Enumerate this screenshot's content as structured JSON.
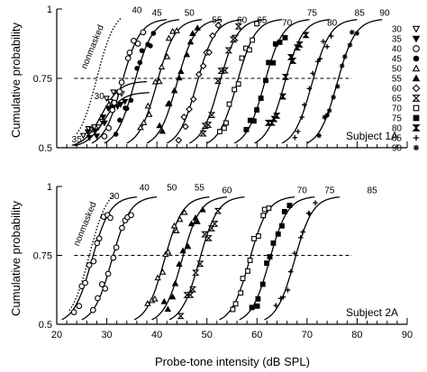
{
  "chart_data": [
    {
      "type": "line",
      "panel": "top",
      "annotation": "Subject 1A",
      "ylabel": "Cumulative probability",
      "ylim": [
        0.5,
        1.0
      ],
      "yticks": [
        "1",
        "0.75",
        "0.5"
      ],
      "xlim": [
        20,
        90
      ],
      "reference_line": 0.75,
      "nonmasked_label": "nonmasked",
      "legend_labels": [
        "30",
        "35",
        "40",
        "45",
        "50",
        "55",
        "60",
        "65",
        "70",
        "75",
        "80",
        "85",
        "90"
      ],
      "legend_markers": [
        "triangle-down-open",
        "triangle-down-filled",
        "circle-open",
        "circle-filled",
        "triangle-up-open",
        "triangle-up-filled",
        "diamond-open",
        "hourglass-open",
        "square-open",
        "square-filled",
        "hourglass-filled",
        "plus",
        "star"
      ],
      "series": [
        {
          "name": "nonmasked",
          "mid": 28.0,
          "top": 1.0,
          "dotted": true
        },
        {
          "name": "30",
          "mid": 29.0,
          "top": 0.74,
          "marker": "triangle-down-open",
          "label": "30",
          "lx": 28.5,
          "ly": 0.675
        },
        {
          "name": "35",
          "mid": 29.5,
          "top": 0.7,
          "marker": "triangle-down-filled",
          "label": "35",
          "lx": 24.0,
          "ly": 0.52
        },
        {
          "name": "40",
          "mid": 33.0,
          "top": 0.965,
          "marker": "circle-open",
          "label": "40",
          "lx": 36.0,
          "ly": 0.985
        },
        {
          "name": "45",
          "mid": 35.5,
          "top": 0.965,
          "marker": "circle-filled",
          "label": "45",
          "lx": 40.0,
          "ly": 0.975
        },
        {
          "name": "50",
          "mid": 40.0,
          "top": 0.965,
          "marker": "triangle-up-open",
          "label": "50",
          "lx": 46.5,
          "ly": 0.975
        },
        {
          "name": "55",
          "mid": 44.0,
          "top": 0.965,
          "marker": "triangle-up-filled",
          "label": "55",
          "lx": 52.0,
          "ly": 0.95
        },
        {
          "name": "60",
          "mid": 48.0,
          "top": 0.965,
          "marker": "diamond-open",
          "label": "60",
          "lx": 57.0,
          "ly": 0.95
        },
        {
          "name": "65",
          "mid": 52.5,
          "top": 0.965,
          "marker": "hourglass-open",
          "label": "65",
          "lx": 61.0,
          "ly": 0.95
        },
        {
          "name": "70",
          "mid": 56.0,
          "top": 0.965,
          "marker": "square-open",
          "label": "70",
          "lx": 66.0,
          "ly": 0.94
        },
        {
          "name": "75",
          "mid": 61.5,
          "top": 0.965,
          "marker": "square-filled",
          "label": "75",
          "lx": 71.0,
          "ly": 0.975
        },
        {
          "name": "80",
          "mid": 65.5,
          "top": 0.965,
          "marker": "hourglass-filled",
          "label": "80",
          "lx": 75.0,
          "ly": 0.94
        },
        {
          "name": "85",
          "mid": 71.0,
          "top": 0.965,
          "marker": "plus",
          "label": "85",
          "lx": 80.5,
          "ly": 0.975
        },
        {
          "name": "90",
          "mid": 76.0,
          "top": 0.965,
          "marker": "star",
          "label": "90",
          "lx": 85.5,
          "ly": 0.975
        }
      ]
    },
    {
      "type": "line",
      "panel": "bottom",
      "annotation": "Subject 2A",
      "ylabel": "Cumulative probability",
      "ylim": [
        0.5,
        1.0
      ],
      "yticks": [
        "1",
        "0.75",
        "0.5"
      ],
      "xlabel": "Probe-tone intensity (dB SPL)",
      "xlim": [
        20,
        90
      ],
      "xticks": [
        20,
        30,
        40,
        50,
        60,
        70,
        80,
        90
      ],
      "reference_line": 0.75,
      "nonmasked_label": "nonmasked",
      "series": [
        {
          "name": "nonmasked",
          "mid": 26.5,
          "top": 1.0,
          "dotted": true
        },
        {
          "name": "30",
          "mid": 27.0,
          "top": 0.965,
          "marker": "circle-open",
          "label": "30",
          "lx": 31.5,
          "ly": 0.955
        },
        {
          "name": "40",
          "mid": 31.0,
          "top": 0.965,
          "marker": "circle-open",
          "label": "40",
          "lx": 37.5,
          "ly": 0.985
        },
        {
          "name": "50",
          "mid": 41.5,
          "top": 0.965,
          "marker": "triangle-up-open",
          "label": "50",
          "lx": 43.0,
          "ly": 0.985
        },
        {
          "name": "55",
          "mid": 45.0,
          "top": 0.965,
          "marker": "triangle-up-filled",
          "label": "55",
          "lx": 48.5,
          "ly": 0.985
        },
        {
          "name": "60",
          "mid": 48.5,
          "top": 0.965,
          "marker": "hourglass-open",
          "label": "60",
          "lx": 54.0,
          "ly": 0.975
        },
        {
          "name": "70",
          "mid": 58.5,
          "top": 0.965,
          "marker": "square-open",
          "label": "70",
          "lx": 69.0,
          "ly": 0.975
        },
        {
          "name": "75",
          "mid": 62.5,
          "top": 0.965,
          "marker": "square-filled",
          "label": "75",
          "lx": 74.5,
          "ly": 0.975
        },
        {
          "name": "85",
          "mid": 67.5,
          "top": 0.965,
          "marker": "plus",
          "label": "85",
          "lx": 83.0,
          "ly": 0.975
        }
      ]
    }
  ],
  "colors": {
    "ink": "#000000",
    "background": "#ffffff"
  }
}
